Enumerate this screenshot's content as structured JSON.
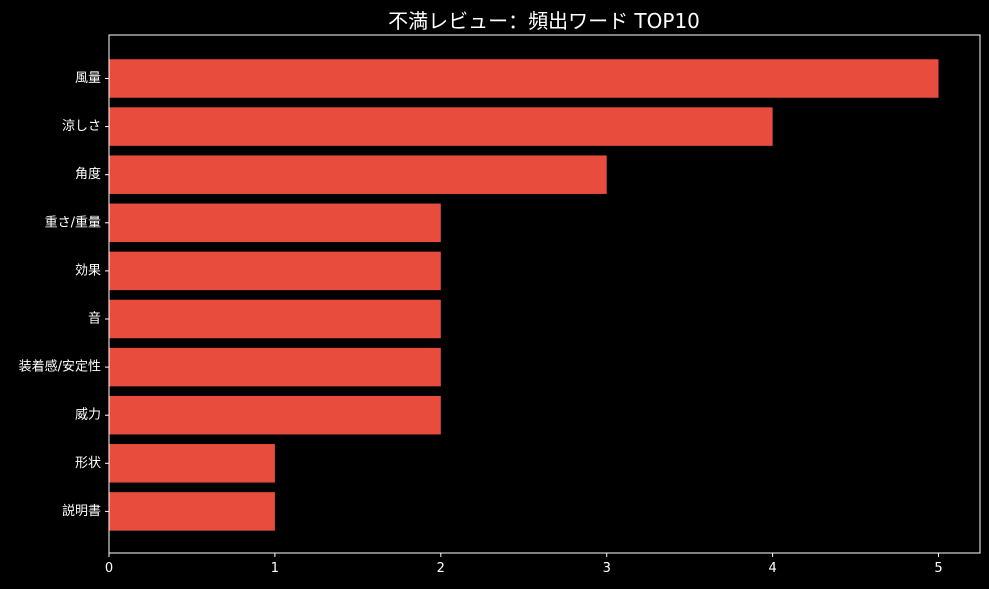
{
  "chart_data": {
    "type": "bar",
    "orientation": "horizontal",
    "title": "不満レビュー：頻出ワード TOP10",
    "xlabel": "",
    "ylabel": "",
    "categories": [
      "風量",
      "涼しさ",
      "角度",
      "重さ/重量",
      "効果",
      "音",
      "装着感/安定性",
      "威力",
      "形状",
      "説明書"
    ],
    "values": [
      5,
      4,
      3,
      2,
      2,
      2,
      2,
      2,
      1,
      1
    ],
    "xlim": [
      0,
      5.25
    ],
    "xticks": [
      "0",
      "1",
      "2",
      "3",
      "4",
      "5"
    ],
    "grid": false,
    "bar_color": "#e74c3c",
    "background_color": "#000000",
    "text_color": "#ffffff",
    "axis_color": "#ffffff"
  }
}
